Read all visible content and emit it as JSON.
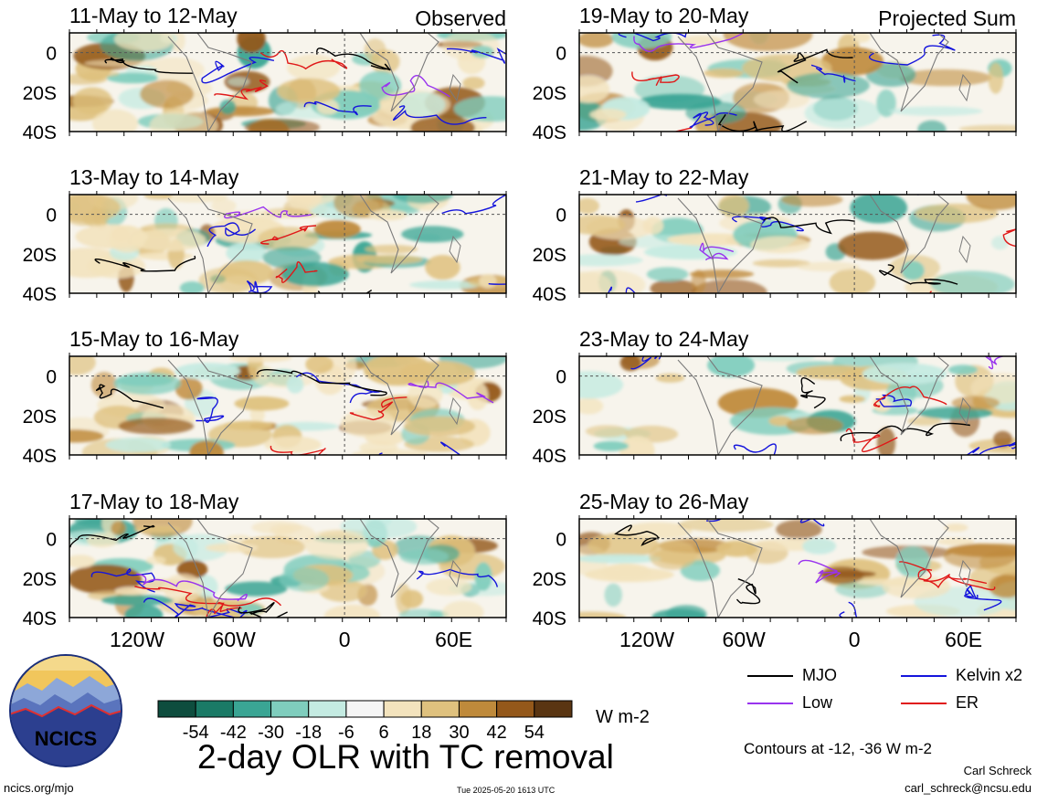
{
  "figure_title": "2-day OLR with TC removal",
  "columns": [
    {
      "header": "Observed",
      "panels": [
        "11-May to 12-May",
        "13-May to 14-May",
        "15-May to 16-May",
        "17-May to 18-May"
      ]
    },
    {
      "header": "Projected Sum",
      "panels": [
        "19-May to 20-May",
        "21-May to 22-May",
        "23-May to 24-May",
        "25-May to 26-May"
      ]
    }
  ],
  "lat_labels": [
    "0",
    "20S",
    "40S"
  ],
  "lon_labels": [
    "120W",
    "60W",
    "0",
    "60E"
  ],
  "colorbar": {
    "ticks": [
      "-54",
      "-42",
      "-30",
      "-18",
      "-6",
      "6",
      "18",
      "30",
      "42",
      "54"
    ],
    "colors": [
      "#0e4d3e",
      "#1a7a66",
      "#3aa594",
      "#7fcdbd",
      "#c4ebe2",
      "#f5f5f5",
      "#f3e3bd",
      "#dfc17e",
      "#bf8a3b",
      "#94581a",
      "#5a3512"
    ],
    "units": "W m-2"
  },
  "legend": [
    {
      "label": "MJO",
      "color": "#000000"
    },
    {
      "label": "Kelvin x2",
      "color": "#1414dc"
    },
    {
      "label": "Low",
      "color": "#9933ee"
    },
    {
      "label": "ER",
      "color": "#e01818"
    }
  ],
  "contours_note": "Contours at -12, -36 W m-2",
  "logo_text": "NCICS",
  "footer": {
    "site": "ncics.org/mjo",
    "timestamp": "Tue 2025-05-20 1613 UTC",
    "author": "Carl Schreck",
    "email": "carl_schreck@ncsu.edu"
  }
}
